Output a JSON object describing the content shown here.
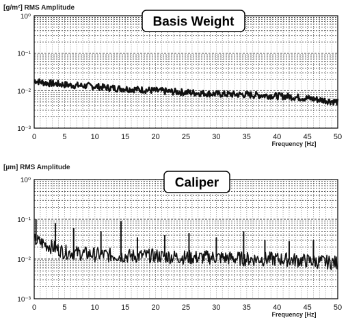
{
  "chart_data": [
    {
      "type": "line",
      "title": "Basis Weight",
      "ylabel": "[g/m²] RMS Amplitude",
      "xlabel": "Frequency [Hz]",
      "xlim": [
        0,
        50
      ],
      "ylim": [
        0.001,
        1
      ],
      "yscale": "log",
      "grid": true,
      "xticks": [
        0,
        5,
        10,
        15,
        20,
        25,
        30,
        35,
        40,
        45,
        50
      ],
      "yticks": [
        "10⁻³",
        "10⁻²",
        "10⁻¹",
        "10⁰"
      ],
      "series": [
        {
          "x": [
            0,
            1,
            2,
            4,
            6,
            8,
            10,
            12,
            14,
            16,
            18,
            20,
            22,
            25,
            28,
            30,
            32,
            35,
            38,
            40,
            42,
            44,
            46,
            48,
            50
          ],
          "values": [
            0.019,
            0.017,
            0.016,
            0.015,
            0.014,
            0.0135,
            0.013,
            0.012,
            0.0115,
            0.011,
            0.0105,
            0.01,
            0.0095,
            0.009,
            0.0085,
            0.0082,
            0.008,
            0.0078,
            0.0075,
            0.0072,
            0.007,
            0.0065,
            0.006,
            0.0055,
            0.005
          ]
        }
      ]
    },
    {
      "type": "line",
      "title": "Caliper",
      "ylabel": "[µm] RMS Amplitude",
      "xlabel": "Frequency [Hz]",
      "xlim": [
        0,
        50
      ],
      "ylim": [
        0.001,
        1
      ],
      "yscale": "log",
      "grid": true,
      "xticks": [
        0,
        5,
        10,
        15,
        20,
        25,
        30,
        35,
        40,
        45,
        50
      ],
      "yticks": [
        "10⁻³",
        "10⁻²",
        "10⁻¹",
        "10⁰"
      ],
      "series": [
        {
          "x": [
            0,
            5,
            10,
            15,
            20,
            25,
            30,
            35,
            40,
            45,
            50
          ],
          "values": [
            0.03,
            0.015,
            0.013,
            0.012,
            0.012,
            0.011,
            0.011,
            0.01,
            0.01,
            0.009,
            0.008
          ]
        }
      ],
      "peaks": [
        {
          "x": 0.3,
          "y": 0.1
        },
        {
          "x": 3.5,
          "y": 0.08
        },
        {
          "x": 6.5,
          "y": 0.06
        },
        {
          "x": 11,
          "y": 0.05
        },
        {
          "x": 14.3,
          "y": 0.09
        },
        {
          "x": 17,
          "y": 0.035
        },
        {
          "x": 21.5,
          "y": 0.04
        },
        {
          "x": 25.5,
          "y": 0.045
        },
        {
          "x": 30,
          "y": 0.035
        },
        {
          "x": 34.5,
          "y": 0.05
        },
        {
          "x": 38,
          "y": 0.03
        },
        {
          "x": 42,
          "y": 0.028
        },
        {
          "x": 46,
          "y": 0.03
        }
      ]
    }
  ]
}
